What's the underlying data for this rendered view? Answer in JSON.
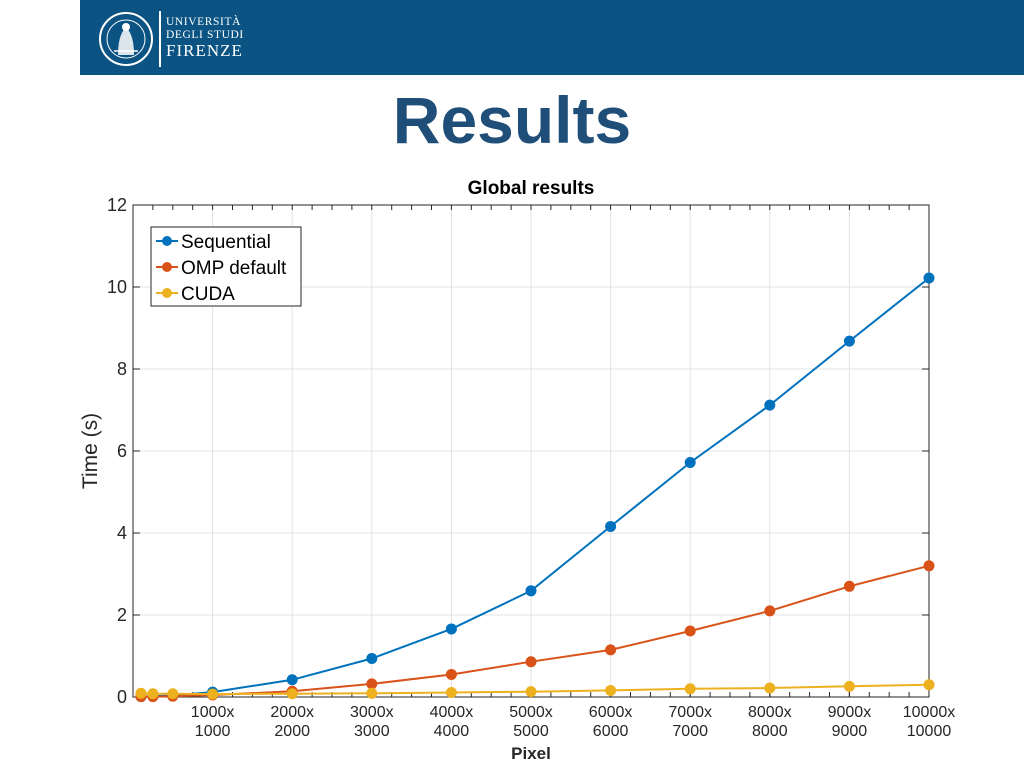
{
  "header": {
    "logo_line1": "UNIVERSITÀ",
    "logo_line2": "DEGLI STUDI",
    "logo_line3": "FIRENZE",
    "seal_text": "SIGILLUM STUDIORUM FLORENTINA",
    "bar_color": "#0a5383"
  },
  "slide": {
    "title": "Results",
    "title_color": "#1f4e79"
  },
  "chart_data": {
    "type": "line",
    "title": "Global results",
    "xlabel": "Pixel",
    "ylabel": "Time (s)",
    "ylim": [
      0,
      12
    ],
    "yticks": [
      0,
      2,
      4,
      6,
      8,
      10,
      12
    ],
    "xlim": [
      0,
      10000
    ],
    "xticks": [
      {
        "x": 1000,
        "line1": "1000x",
        "line2": "1000"
      },
      {
        "x": 2000,
        "line1": "2000x",
        "line2": "2000"
      },
      {
        "x": 3000,
        "line1": "3000x",
        "line2": "3000"
      },
      {
        "x": 4000,
        "line1": "4000x",
        "line2": "4000"
      },
      {
        "x": 5000,
        "line1": "5000x",
        "line2": "5000"
      },
      {
        "x": 6000,
        "line1": "6000x",
        "line2": "6000"
      },
      {
        "x": 7000,
        "line1": "7000x",
        "line2": "7000"
      },
      {
        "x": 8000,
        "line1": "8000x",
        "line2": "8000"
      },
      {
        "x": 9000,
        "line1": "9000x",
        "line2": "9000"
      },
      {
        "x": 10000,
        "line1": "10000x",
        "line2": "10000"
      }
    ],
    "x": [
      100,
      250,
      500,
      1000,
      2000,
      3000,
      4000,
      5000,
      6000,
      7000,
      8000,
      9000,
      10000
    ],
    "grid": true,
    "legend_position": "top-left",
    "series": [
      {
        "name": "Sequential",
        "color": "#0072bd",
        "values": [
          0.01,
          0.02,
          0.04,
          0.12,
          0.42,
          0.94,
          1.66,
          2.59,
          4.16,
          5.72,
          7.12,
          8.68,
          10.22
        ]
      },
      {
        "name": "OMP default",
        "color": "#d95319",
        "values": [
          0.01,
          0.01,
          0.02,
          0.05,
          0.14,
          0.32,
          0.55,
          0.86,
          1.15,
          1.61,
          2.1,
          2.7,
          3.2
        ]
      },
      {
        "name": "CUDA",
        "color": "#edb120",
        "values": [
          0.09,
          0.08,
          0.08,
          0.07,
          0.08,
          0.09,
          0.11,
          0.13,
          0.16,
          0.2,
          0.22,
          0.26,
          0.3
        ]
      }
    ]
  }
}
